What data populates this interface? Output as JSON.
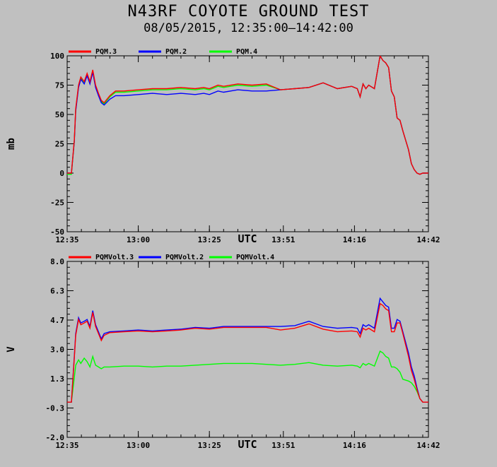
{
  "title": "N43RF COYOTE GROUND TEST",
  "subtitle": "08/05/2015, 12:35:00–14:42:00",
  "colors": {
    "red": "#ff0000",
    "blue": "#0000ff",
    "green": "#00ff00"
  },
  "chart_data": [
    {
      "type": "line",
      "ylabel": "mb",
      "xlabel": "UTC",
      "ylim": [
        -50,
        100
      ],
      "yticks": [
        "100",
        "75",
        "50",
        "25",
        "0",
        "-25",
        "-50"
      ],
      "ytick_values": [
        100,
        75,
        50,
        25,
        0,
        -25,
        -50
      ],
      "xlim": [
        0,
        127
      ],
      "xticks": [
        "12:35",
        "13:00",
        "13:25",
        "13:51",
        "14:16",
        "14:42"
      ],
      "xtick_values": [
        0,
        25,
        50,
        76,
        101,
        127
      ],
      "legend_placement": "top-left",
      "series": [
        {
          "name": "PQM.3",
          "color": "#ff0000",
          "x": [
            0,
            0.8,
            1.5,
            2.5,
            3,
            4,
            4.8,
            6,
            7,
            8,
            9,
            10,
            11,
            12,
            13,
            15,
            17,
            20,
            25,
            30,
            35,
            40,
            45,
            48,
            50,
            53,
            55,
            60,
            65,
            70,
            75,
            80,
            85,
            90,
            95,
            100,
            102,
            103,
            104,
            105,
            106,
            108,
            110,
            111,
            112,
            113,
            114,
            115,
            116,
            117,
            118,
            120,
            121,
            122,
            123,
            124,
            125,
            126,
            127
          ],
          "y": [
            0,
            0,
            0,
            28,
            55,
            75,
            82,
            78,
            85,
            78,
            88,
            75,
            68,
            62,
            60,
            66,
            70,
            70,
            71,
            72,
            72,
            73,
            72,
            73,
            72,
            75,
            74,
            76,
            75,
            76,
            71,
            72,
            73,
            77,
            72,
            74,
            72,
            65,
            76,
            72,
            75,
            72,
            100,
            96,
            94,
            90,
            70,
            65,
            47,
            45,
            36,
            20,
            8,
            3,
            0,
            -1,
            0,
            0,
            0
          ]
        },
        {
          "name": "PQM.2",
          "color": "#0000ff",
          "x": [
            0,
            0.8,
            1.5,
            2.5,
            3,
            4,
            4.8,
            6,
            7,
            8,
            9,
            10,
            11,
            12,
            13,
            15,
            17,
            20,
            25,
            30,
            35,
            40,
            45,
            48,
            50,
            53,
            55,
            60,
            65,
            70,
            75,
            80,
            85,
            90,
            95,
            100,
            102,
            103,
            104,
            105,
            106,
            108,
            110,
            111,
            112,
            113,
            114,
            115,
            116,
            117,
            118,
            120,
            121,
            122,
            123,
            124,
            125,
            126,
            127
          ],
          "y": [
            0,
            0,
            0,
            27,
            53,
            73,
            80,
            76,
            83,
            76,
            86,
            73,
            66,
            60,
            58,
            63,
            66,
            66,
            67,
            68,
            67,
            68,
            67,
            68,
            67,
            70,
            69,
            71,
            70,
            70,
            71,
            72,
            73,
            77,
            72,
            74,
            72,
            65,
            76,
            72,
            75,
            72,
            100,
            96,
            94,
            90,
            70,
            65,
            47,
            45,
            36,
            20,
            8,
            3,
            0,
            -1,
            0,
            0,
            0
          ]
        },
        {
          "name": "PQM.4",
          "color": "#00ff00",
          "x": [
            0,
            0.8,
            1.5,
            2.5,
            3,
            4,
            4.8,
            6,
            7,
            8,
            9,
            10,
            11,
            12,
            13,
            15,
            17,
            20,
            25,
            30,
            35,
            40,
            45,
            48,
            50,
            53,
            55,
            60,
            65,
            70,
            75,
            80,
            85,
            90,
            95,
            100,
            102,
            103,
            104,
            105,
            106,
            108,
            110,
            111,
            112,
            113,
            114,
            115,
            116,
            117,
            118,
            120,
            121,
            122,
            123,
            124,
            125,
            126,
            127
          ],
          "y": [
            -1,
            -1,
            -1,
            27,
            54,
            74,
            81,
            77,
            84,
            77,
            87,
            74,
            67,
            61,
            59,
            65,
            69,
            69,
            70,
            71,
            71,
            72,
            71,
            72,
            71,
            74,
            73,
            75,
            74,
            75,
            71,
            72,
            73,
            77,
            72,
            74,
            72,
            65,
            76,
            72,
            75,
            72,
            100,
            96,
            94,
            90,
            70,
            65,
            47,
            45,
            36,
            20,
            8,
            3,
            0,
            -1,
            0,
            0,
            0
          ]
        }
      ]
    },
    {
      "type": "line",
      "ylabel": "V",
      "xlabel": "UTC",
      "ylim": [
        -2.0,
        8.0
      ],
      "yticks": [
        "8.0",
        "6.3",
        "4.7",
        "3.0",
        "1.3",
        "-0.3",
        "-2.0"
      ],
      "ytick_values": [
        8.0,
        6.333,
        4.667,
        3.0,
        1.333,
        -0.333,
        -2.0
      ],
      "xlim": [
        0,
        127
      ],
      "xticks": [
        "12:35",
        "13:00",
        "13:25",
        "13:51",
        "14:16",
        "14:42"
      ],
      "xtick_values": [
        0,
        25,
        50,
        76,
        101,
        127
      ],
      "legend_placement": "top-left",
      "series": [
        {
          "name": "PQMVolt.3",
          "color": "#ff0000",
          "x": [
            0,
            1.5,
            2.5,
            3,
            4,
            4.8,
            6,
            7,
            8,
            9,
            10,
            11,
            12,
            13,
            15,
            20,
            25,
            30,
            35,
            40,
            45,
            50,
            55,
            60,
            65,
            70,
            75,
            80,
            85,
            90,
            95,
            100,
            102,
            103,
            104,
            105,
            106,
            108,
            110,
            111,
            112,
            113,
            114,
            115,
            116,
            117,
            118,
            120,
            121,
            122,
            123,
            124,
            125,
            126,
            127
          ],
          "y": [
            0,
            0,
            2.5,
            3.8,
            4.7,
            4.4,
            4.5,
            4.6,
            4.2,
            5.1,
            4.3,
            3.9,
            3.5,
            3.8,
            3.95,
            4.0,
            4.05,
            4.0,
            4.05,
            4.1,
            4.2,
            4.15,
            4.25,
            4.25,
            4.25,
            4.25,
            4.1,
            4.2,
            4.45,
            4.15,
            4.0,
            4.05,
            4.0,
            3.7,
            4.2,
            4.1,
            4.2,
            4.0,
            5.6,
            5.5,
            5.3,
            5.2,
            4.0,
            4.0,
            4.5,
            4.5,
            3.9,
            2.6,
            1.8,
            1.3,
            0.7,
            0.2,
            0.0,
            0.0,
            0.0
          ]
        },
        {
          "name": "PQMVolt.2",
          "color": "#0000ff",
          "x": [
            0,
            1.5,
            2.5,
            3,
            4,
            4.8,
            6,
            7,
            8,
            9,
            10,
            11,
            12,
            13,
            15,
            20,
            25,
            30,
            35,
            40,
            45,
            50,
            55,
            60,
            65,
            70,
            75,
            80,
            85,
            90,
            95,
            100,
            102,
            103,
            104,
            105,
            106,
            108,
            110,
            111,
            112,
            113,
            114,
            115,
            116,
            117,
            118,
            120,
            121,
            122,
            123,
            124,
            125,
            126,
            127
          ],
          "y": [
            0,
            0,
            2.6,
            3.9,
            4.8,
            4.5,
            4.6,
            4.7,
            4.3,
            5.2,
            4.4,
            4.0,
            3.6,
            3.9,
            4.0,
            4.05,
            4.1,
            4.05,
            4.1,
            4.15,
            4.25,
            4.2,
            4.3,
            4.3,
            4.3,
            4.3,
            4.3,
            4.35,
            4.6,
            4.3,
            4.2,
            4.25,
            4.2,
            3.9,
            4.4,
            4.3,
            4.4,
            4.2,
            5.9,
            5.7,
            5.5,
            5.4,
            4.2,
            4.2,
            4.7,
            4.6,
            4.0,
            2.8,
            2.0,
            1.5,
            0.8,
            0.2,
            0.0,
            0.0,
            0.0
          ]
        },
        {
          "name": "PQMVolt.4",
          "color": "#00ff00",
          "x": [
            0,
            1.5,
            2.5,
            3,
            4,
            4.8,
            6,
            7,
            8,
            9,
            10,
            11,
            12,
            13,
            15,
            20,
            25,
            30,
            35,
            40,
            45,
            50,
            55,
            60,
            65,
            70,
            75,
            80,
            85,
            90,
            95,
            100,
            102,
            103,
            104,
            105,
            106,
            108,
            110,
            111,
            112,
            113,
            114,
            115,
            116,
            117,
            118,
            120,
            121,
            122,
            123,
            124,
            125,
            126,
            127
          ],
          "y": [
            0,
            0,
            1.4,
            2.1,
            2.4,
            2.2,
            2.5,
            2.3,
            2.0,
            2.6,
            2.1,
            2.0,
            1.9,
            2.0,
            2.0,
            2.05,
            2.05,
            2.0,
            2.05,
            2.05,
            2.1,
            2.15,
            2.2,
            2.2,
            2.2,
            2.15,
            2.1,
            2.15,
            2.25,
            2.1,
            2.05,
            2.1,
            2.05,
            1.95,
            2.2,
            2.1,
            2.2,
            2.05,
            2.9,
            2.8,
            2.6,
            2.5,
            2.0,
            2.0,
            1.9,
            1.7,
            1.3,
            1.2,
            1.1,
            0.9,
            0.6,
            0.2,
            0.0,
            0.0,
            0.0
          ]
        }
      ]
    }
  ]
}
